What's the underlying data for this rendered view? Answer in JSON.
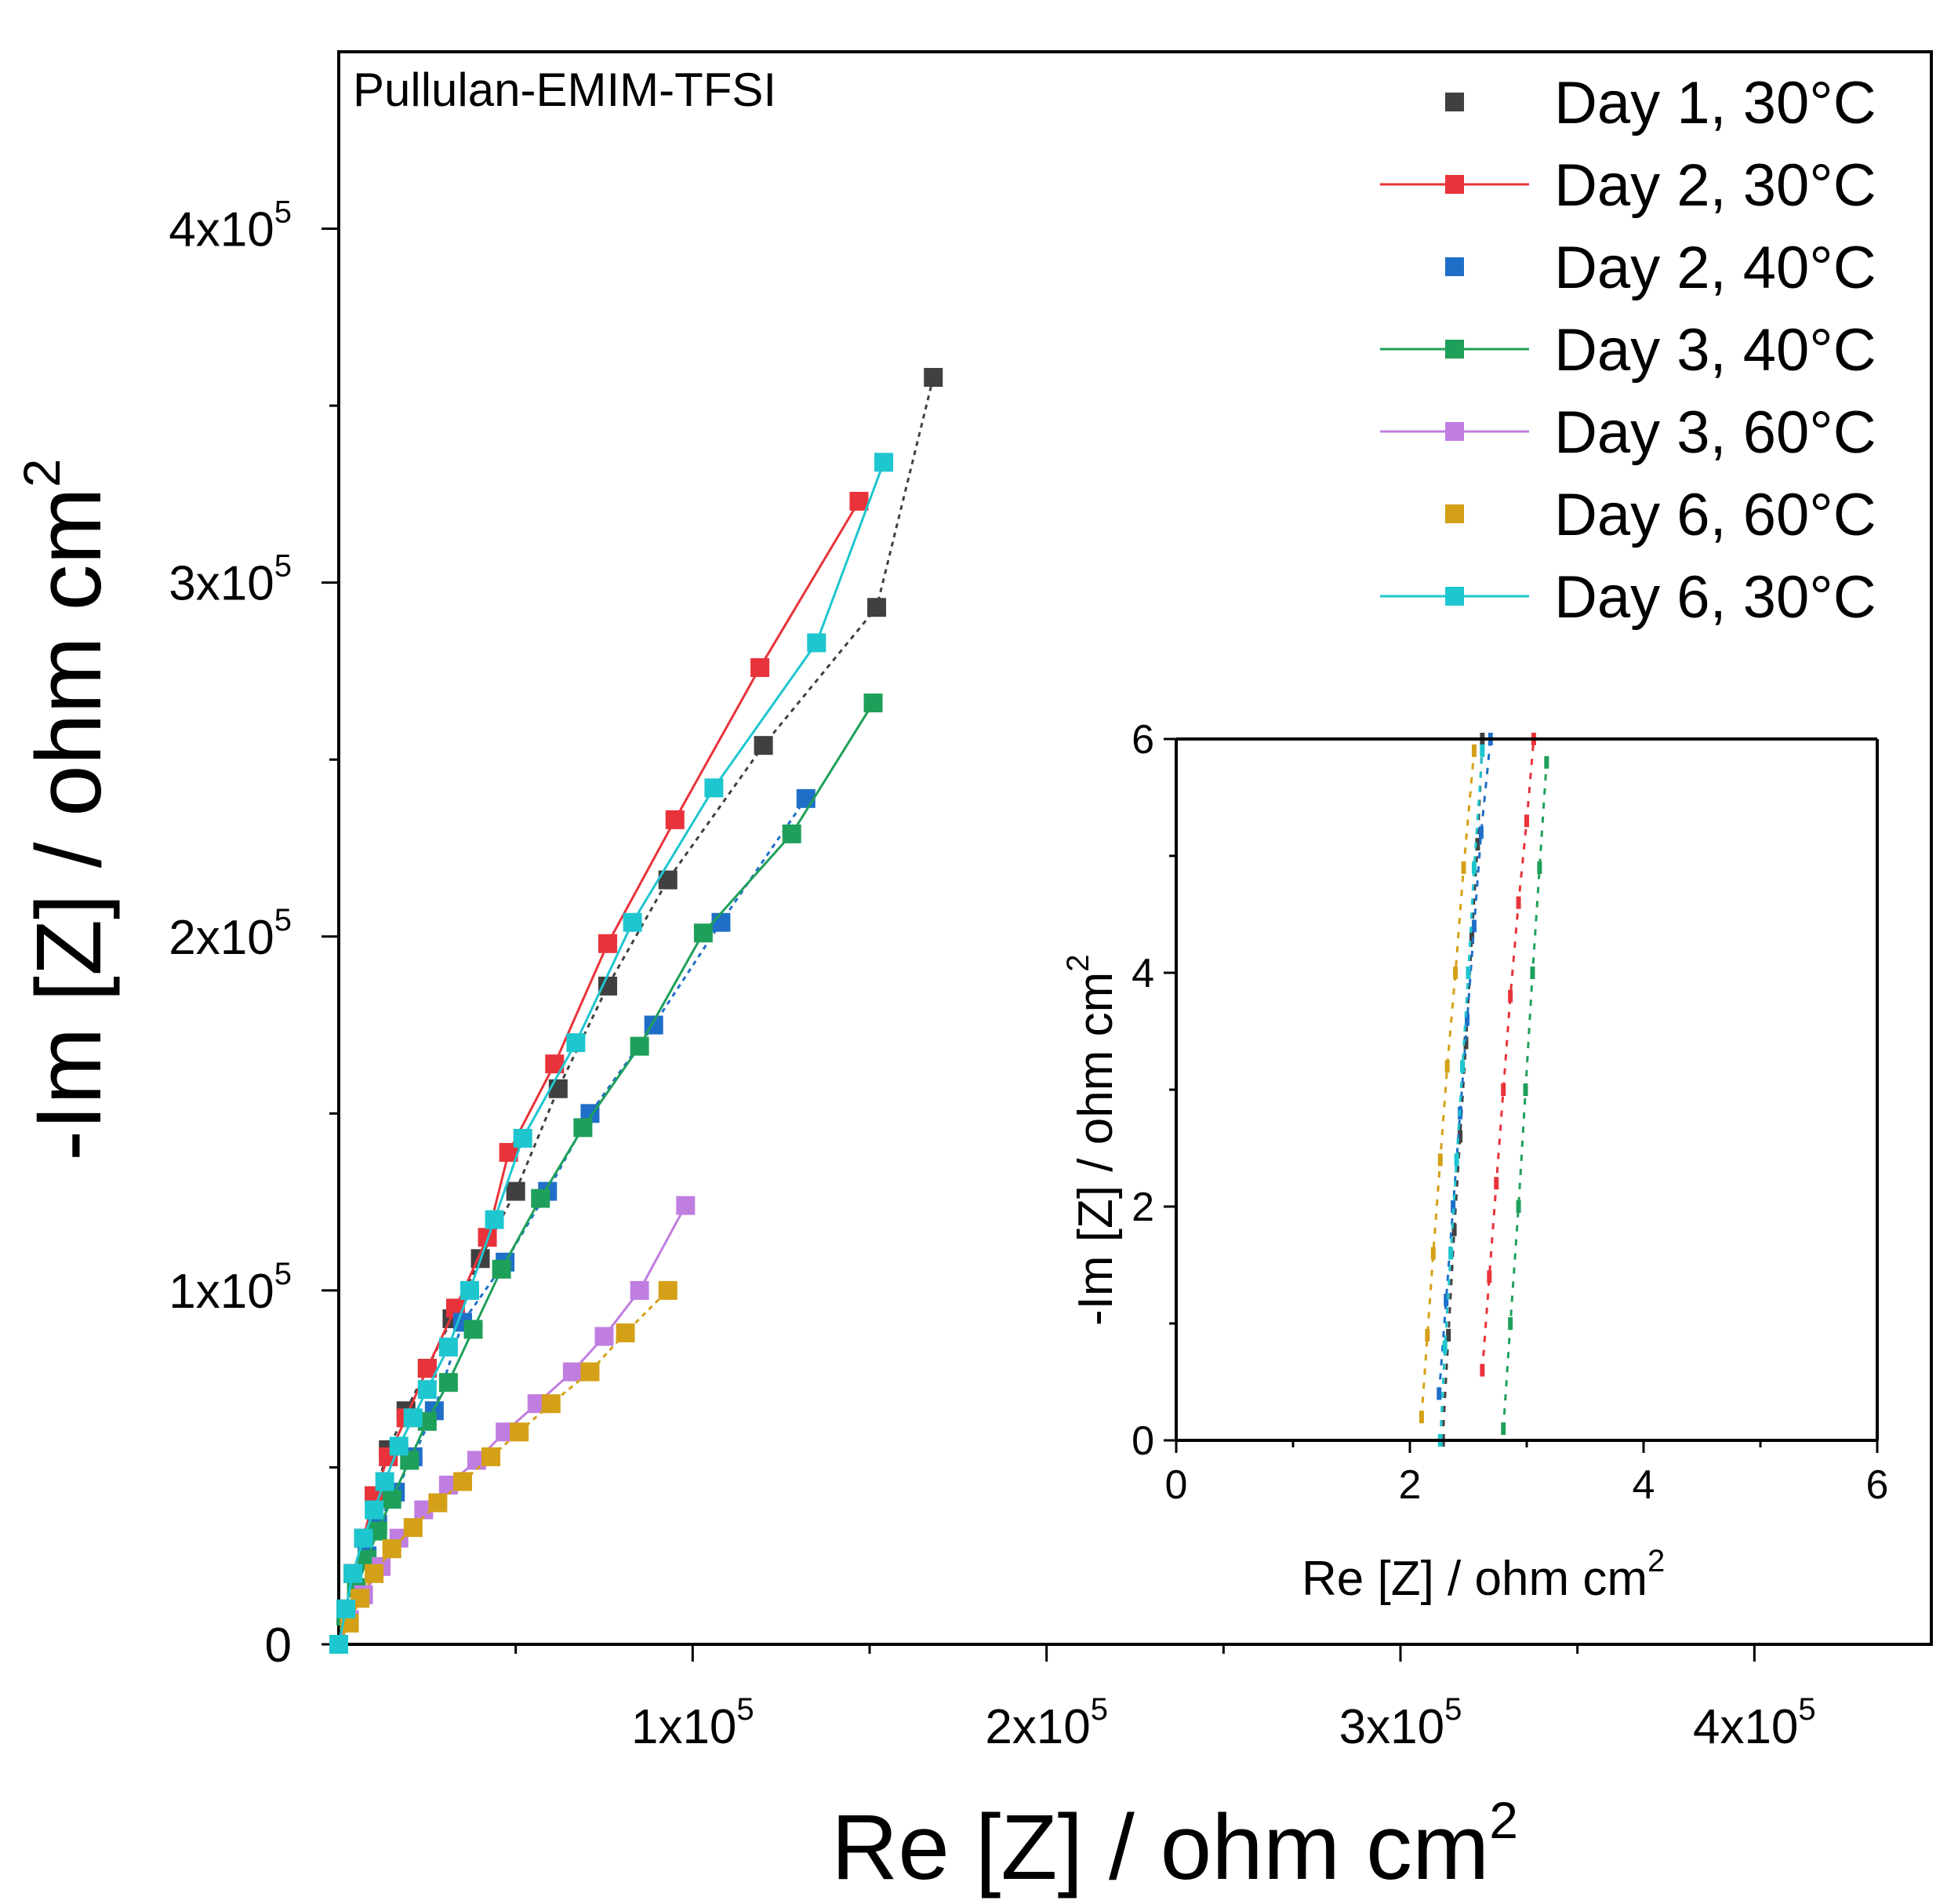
{
  "chart_data": {
    "type": "scatter",
    "title": "Pullulan-EMIM-TFSI",
    "xlabel": "Re [Z] / ohm cm",
    "xlabel_sup": "2",
    "ylabel": "-Im [Z] / ohm cm",
    "ylabel_sup": "2",
    "xlim": [
      0,
      450000
    ],
    "ylim": [
      0,
      450000
    ],
    "x_ticks": [
      {
        "value": 100000,
        "base": "1x10",
        "exp": "5"
      },
      {
        "value": 200000,
        "base": "2x10",
        "exp": "5"
      },
      {
        "value": 300000,
        "base": "3x10",
        "exp": "5"
      },
      {
        "value": 400000,
        "base": "4x10",
        "exp": "5"
      }
    ],
    "y_ticks": [
      {
        "value": 0,
        "base": "0",
        "exp": ""
      },
      {
        "value": 100000,
        "base": "1x10",
        "exp": "5"
      },
      {
        "value": 200000,
        "base": "2x10",
        "exp": "5"
      },
      {
        "value": 300000,
        "base": "3x10",
        "exp": "5"
      },
      {
        "value": 400000,
        "base": "4x10",
        "exp": "5"
      }
    ],
    "legend_position": "top-right",
    "series": [
      {
        "name": "Day 1, 30°C",
        "color": "#404040",
        "line": "dotted",
        "x": [
          0,
          2000,
          4000,
          7000,
          10000,
          14000,
          19000,
          25000,
          32000,
          40000,
          50000,
          62000,
          76000,
          93000,
          120000,
          152000,
          168000
        ],
        "y": [
          0,
          10000,
          20000,
          30000,
          42000,
          55000,
          66000,
          78000,
          92000,
          109000,
          128000,
          157000,
          186000,
          216000,
          254000,
          293000,
          358000
        ]
      },
      {
        "name": "Day 2, 30°C",
        "color": "#e8333a",
        "line": "solid",
        "x": [
          0,
          2000,
          4000,
          7000,
          10000,
          14000,
          19000,
          25000,
          33000,
          42000,
          48000,
          61000,
          76000,
          95000,
          119000,
          147000
        ],
        "y": [
          0,
          10000,
          20000,
          30000,
          42000,
          53000,
          64000,
          78000,
          95000,
          115000,
          139000,
          164000,
          198000,
          233000,
          276000,
          323000
        ]
      },
      {
        "name": "Day 2, 40°C",
        "color": "#1f6fc8",
        "line": "dotted",
        "x": [
          0,
          2000,
          5000,
          8000,
          11000,
          16000,
          21000,
          27000,
          35000,
          47000,
          59000,
          71000,
          89000,
          108000,
          132000
        ],
        "y": [
          0,
          8000,
          16000,
          25000,
          34000,
          43000,
          53000,
          66000,
          91000,
          108000,
          128000,
          150000,
          175000,
          204000,
          239000
        ]
      },
      {
        "name": "Day 3, 40°C",
        "color": "#1fa05a",
        "line": "solid",
        "x": [
          0,
          2000,
          5000,
          8000,
          11000,
          15000,
          20000,
          25000,
          31000,
          38000,
          46000,
          57000,
          69000,
          85000,
          103000,
          128000,
          151000
        ],
        "y": [
          0,
          8000,
          16000,
          24000,
          32000,
          41000,
          52000,
          63000,
          74000,
          89000,
          106000,
          126000,
          146000,
          169000,
          201000,
          229000,
          266000
        ]
      },
      {
        "name": "Day 3, 60°C",
        "color": "#c07ee0",
        "line": "solid",
        "x": [
          0,
          3000,
          7000,
          12000,
          17000,
          24000,
          31000,
          39000,
          47000,
          56000,
          66000,
          75000,
          85000,
          98000
        ],
        "y": [
          0,
          7000,
          14000,
          22000,
          30000,
          38000,
          45000,
          52000,
          60000,
          68000,
          77000,
          87000,
          100000,
          124000
        ]
      },
      {
        "name": "Day 6, 60°C",
        "color": "#d4a017",
        "line": "dotted",
        "x": [
          0,
          3000,
          6000,
          10000,
          15000,
          21000,
          28000,
          35000,
          43000,
          51000,
          60000,
          71000,
          81000,
          93000
        ],
        "y": [
          0,
          6000,
          13000,
          20000,
          27000,
          33000,
          40000,
          46000,
          53000,
          60000,
          68000,
          77000,
          88000,
          100000
        ]
      },
      {
        "name": "Day 6, 30°C",
        "color": "#1ec6cf",
        "line": "solid",
        "x": [
          0,
          2000,
          4000,
          7000,
          10000,
          13000,
          17000,
          21000,
          25000,
          31000,
          37000,
          44000,
          52000,
          67000,
          83000,
          106000,
          135000,
          154000
        ],
        "y": [
          0,
          10000,
          20000,
          30000,
          38000,
          46000,
          56000,
          64000,
          72000,
          84000,
          100000,
          120000,
          143000,
          170000,
          204000,
          242000,
          283000,
          334000
        ]
      }
    ],
    "inset": {
      "xlabel": "Re [Z] / ohm cm",
      "xlabel_sup": "2",
      "ylabel": "-Im [Z] / ohm cm",
      "ylabel_sup": "2",
      "xlim": [
        0,
        6
      ],
      "ylim": [
        0,
        6
      ],
      "x_ticks": [
        "0",
        "2",
        "4",
        "6"
      ],
      "y_ticks": [
        "0",
        "2",
        "4",
        "6"
      ],
      "series": [
        {
          "name": "Day 1, 30°C",
          "color": "#404040",
          "x": [
            2.28,
            2.33,
            2.38,
            2.43,
            2.48,
            2.53,
            2.58,
            2.62
          ],
          "y": [
            0,
            0.9,
            1.8,
            2.6,
            3.4,
            4.3,
            5.1,
            6.0
          ]
        },
        {
          "name": "Day 2, 30°C",
          "color": "#e8333a",
          "x": [
            2.62,
            2.68,
            2.74,
            2.8,
            2.86,
            2.93,
            3.0,
            3.06
          ],
          "y": [
            0.6,
            1.4,
            2.2,
            3.0,
            3.8,
            4.6,
            5.3,
            6.0
          ]
        },
        {
          "name": "Day 2, 40°C",
          "color": "#1f6fc8",
          "x": [
            2.25,
            2.31,
            2.37,
            2.43,
            2.49,
            2.55,
            2.61,
            2.69
          ],
          "y": [
            0.4,
            1.2,
            2.0,
            2.8,
            3.6,
            4.4,
            5.2,
            6.0
          ]
        },
        {
          "name": "Day 3, 40°C",
          "color": "#1fa05a",
          "x": [
            2.8,
            2.86,
            2.93,
            2.99,
            3.05,
            3.11,
            3.17
          ],
          "y": [
            0.1,
            1.0,
            2.0,
            3.0,
            4.0,
            4.9,
            5.8
          ]
        },
        {
          "name": "Day 6, 60°C",
          "color": "#d4a017",
          "x": [
            2.1,
            2.15,
            2.2,
            2.26,
            2.32,
            2.39,
            2.46,
            2.55
          ],
          "y": [
            0.2,
            0.9,
            1.6,
            2.4,
            3.2,
            4.0,
            4.9,
            5.9
          ]
        },
        {
          "name": "Day 6, 30°C",
          "color": "#1ec6cf",
          "x": [
            2.26,
            2.3,
            2.35,
            2.4,
            2.45,
            2.5,
            2.55,
            2.62
          ],
          "y": [
            0.0,
            0.8,
            1.6,
            2.4,
            3.2,
            4.0,
            4.9,
            5.9
          ]
        }
      ]
    }
  }
}
